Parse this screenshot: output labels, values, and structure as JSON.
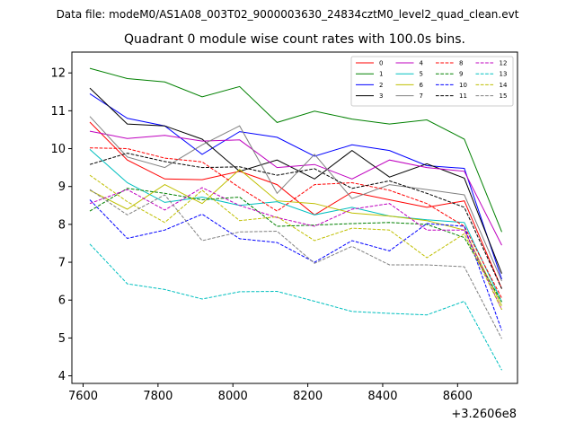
{
  "header": {
    "data_file": "Data file: modeM0/AS1A08_003T02_9000003630_24834cztM0_level2_quad_clean.evt"
  },
  "chart_data": {
    "type": "line",
    "title": "Quadrant 0 module wise count rates with 100.0s bins.",
    "xlabel": "",
    "ylabel": "",
    "x_offset_label": "+3.2606e8",
    "xlim": [
      7570,
      8760
    ],
    "ylim": [
      3.8,
      12.55
    ],
    "xticks": [
      7600,
      7800,
      8000,
      8200,
      8400,
      8600
    ],
    "yticks": [
      4,
      5,
      6,
      7,
      8,
      9,
      10,
      11,
      12
    ],
    "legend_position": "top-right",
    "x": [
      7618,
      7718,
      7818,
      7918,
      8018,
      8118,
      8218,
      8318,
      8418,
      8518,
      8618,
      8718
    ],
    "series": [
      {
        "name": "0",
        "color": "#ff0000",
        "dash": "solid",
        "values": [
          10.7,
          9.7,
          9.2,
          9.18,
          9.4,
          9.05,
          8.25,
          8.85,
          8.65,
          8.45,
          8.62,
          6.3
        ]
      },
      {
        "name": "1",
        "color": "#008000",
        "dash": "solid",
        "values": [
          12.12,
          11.85,
          11.76,
          11.37,
          11.64,
          10.69,
          10.99,
          10.78,
          10.65,
          10.76,
          10.25,
          7.8
        ]
      },
      {
        "name": "2",
        "color": "#0000ff",
        "dash": "solid",
        "values": [
          11.45,
          10.8,
          10.6,
          9.85,
          10.45,
          10.3,
          9.8,
          10.1,
          9.95,
          9.55,
          9.48,
          6.55
        ]
      },
      {
        "name": "3",
        "color": "#000000",
        "dash": "solid",
        "values": [
          11.6,
          10.65,
          10.6,
          10.25,
          9.4,
          9.7,
          9.2,
          9.95,
          9.25,
          9.6,
          9.22,
          6.7
        ]
      },
      {
        "name": "4",
        "color": "#bf00bf",
        "dash": "solid",
        "values": [
          10.46,
          10.27,
          10.35,
          10.2,
          10.23,
          9.5,
          9.58,
          9.2,
          9.7,
          9.5,
          9.4,
          7.45
        ]
      },
      {
        "name": "5",
        "color": "#00bfbf",
        "dash": "solid",
        "values": [
          9.98,
          9.1,
          8.58,
          8.72,
          8.5,
          8.6,
          8.25,
          8.45,
          8.22,
          8.12,
          8.05,
          5.95
        ]
      },
      {
        "name": "6",
        "color": "#bfbf00",
        "dash": "solid",
        "values": [
          8.9,
          8.4,
          9.05,
          8.55,
          9.45,
          8.62,
          8.55,
          8.3,
          8.22,
          8.1,
          7.85,
          5.85
        ]
      },
      {
        "name": "7",
        "color": "#808080",
        "dash": "solid",
        "values": [
          10.85,
          9.78,
          9.5,
          10.1,
          10.6,
          8.82,
          9.85,
          8.68,
          9.05,
          8.92,
          8.78,
          6.5
        ]
      },
      {
        "name": "8",
        "color": "#ff0000",
        "dash": "dashed",
        "values": [
          10.02,
          10.0,
          9.75,
          9.65,
          8.97,
          8.35,
          9.05,
          9.1,
          8.9,
          8.55,
          7.95,
          6.05
        ]
      },
      {
        "name": "9",
        "color": "#008000",
        "dash": "dashed",
        "values": [
          8.35,
          8.95,
          8.82,
          8.65,
          8.72,
          7.95,
          7.98,
          8.02,
          8.05,
          8.0,
          7.65,
          5.95
        ]
      },
      {
        "name": "10",
        "color": "#0000ff",
        "dash": "dashed",
        "values": [
          8.65,
          7.63,
          7.85,
          8.27,
          7.62,
          7.52,
          7.0,
          7.57,
          7.3,
          8.02,
          7.95,
          5.2
        ]
      },
      {
        "name": "11",
        "color": "#000000",
        "dash": "dashed",
        "values": [
          9.58,
          9.88,
          9.66,
          9.5,
          9.52,
          9.3,
          9.47,
          8.95,
          9.15,
          8.82,
          8.45,
          6.3
        ]
      },
      {
        "name": "12",
        "color": "#bf00bf",
        "dash": "dashed",
        "values": [
          8.55,
          8.92,
          8.38,
          8.97,
          8.5,
          8.18,
          7.95,
          8.4,
          8.55,
          7.85,
          7.85,
          5.75
        ]
      },
      {
        "name": "13",
        "color": "#00bfbf",
        "dash": "dashed",
        "values": [
          7.48,
          6.43,
          6.28,
          6.03,
          6.22,
          6.23,
          5.97,
          5.7,
          5.65,
          5.61,
          5.97,
          4.15
        ]
      },
      {
        "name": "14",
        "color": "#bfbf00",
        "dash": "dashed",
        "values": [
          9.3,
          8.6,
          8.05,
          8.9,
          8.1,
          8.2,
          7.57,
          7.9,
          7.85,
          7.12,
          7.75,
          5.75
        ]
      },
      {
        "name": "15",
        "color": "#808080",
        "dash": "dashed",
        "values": [
          8.92,
          8.25,
          8.78,
          7.57,
          7.8,
          7.82,
          6.97,
          7.42,
          6.93,
          6.93,
          6.88,
          4.98
        ]
      }
    ]
  }
}
